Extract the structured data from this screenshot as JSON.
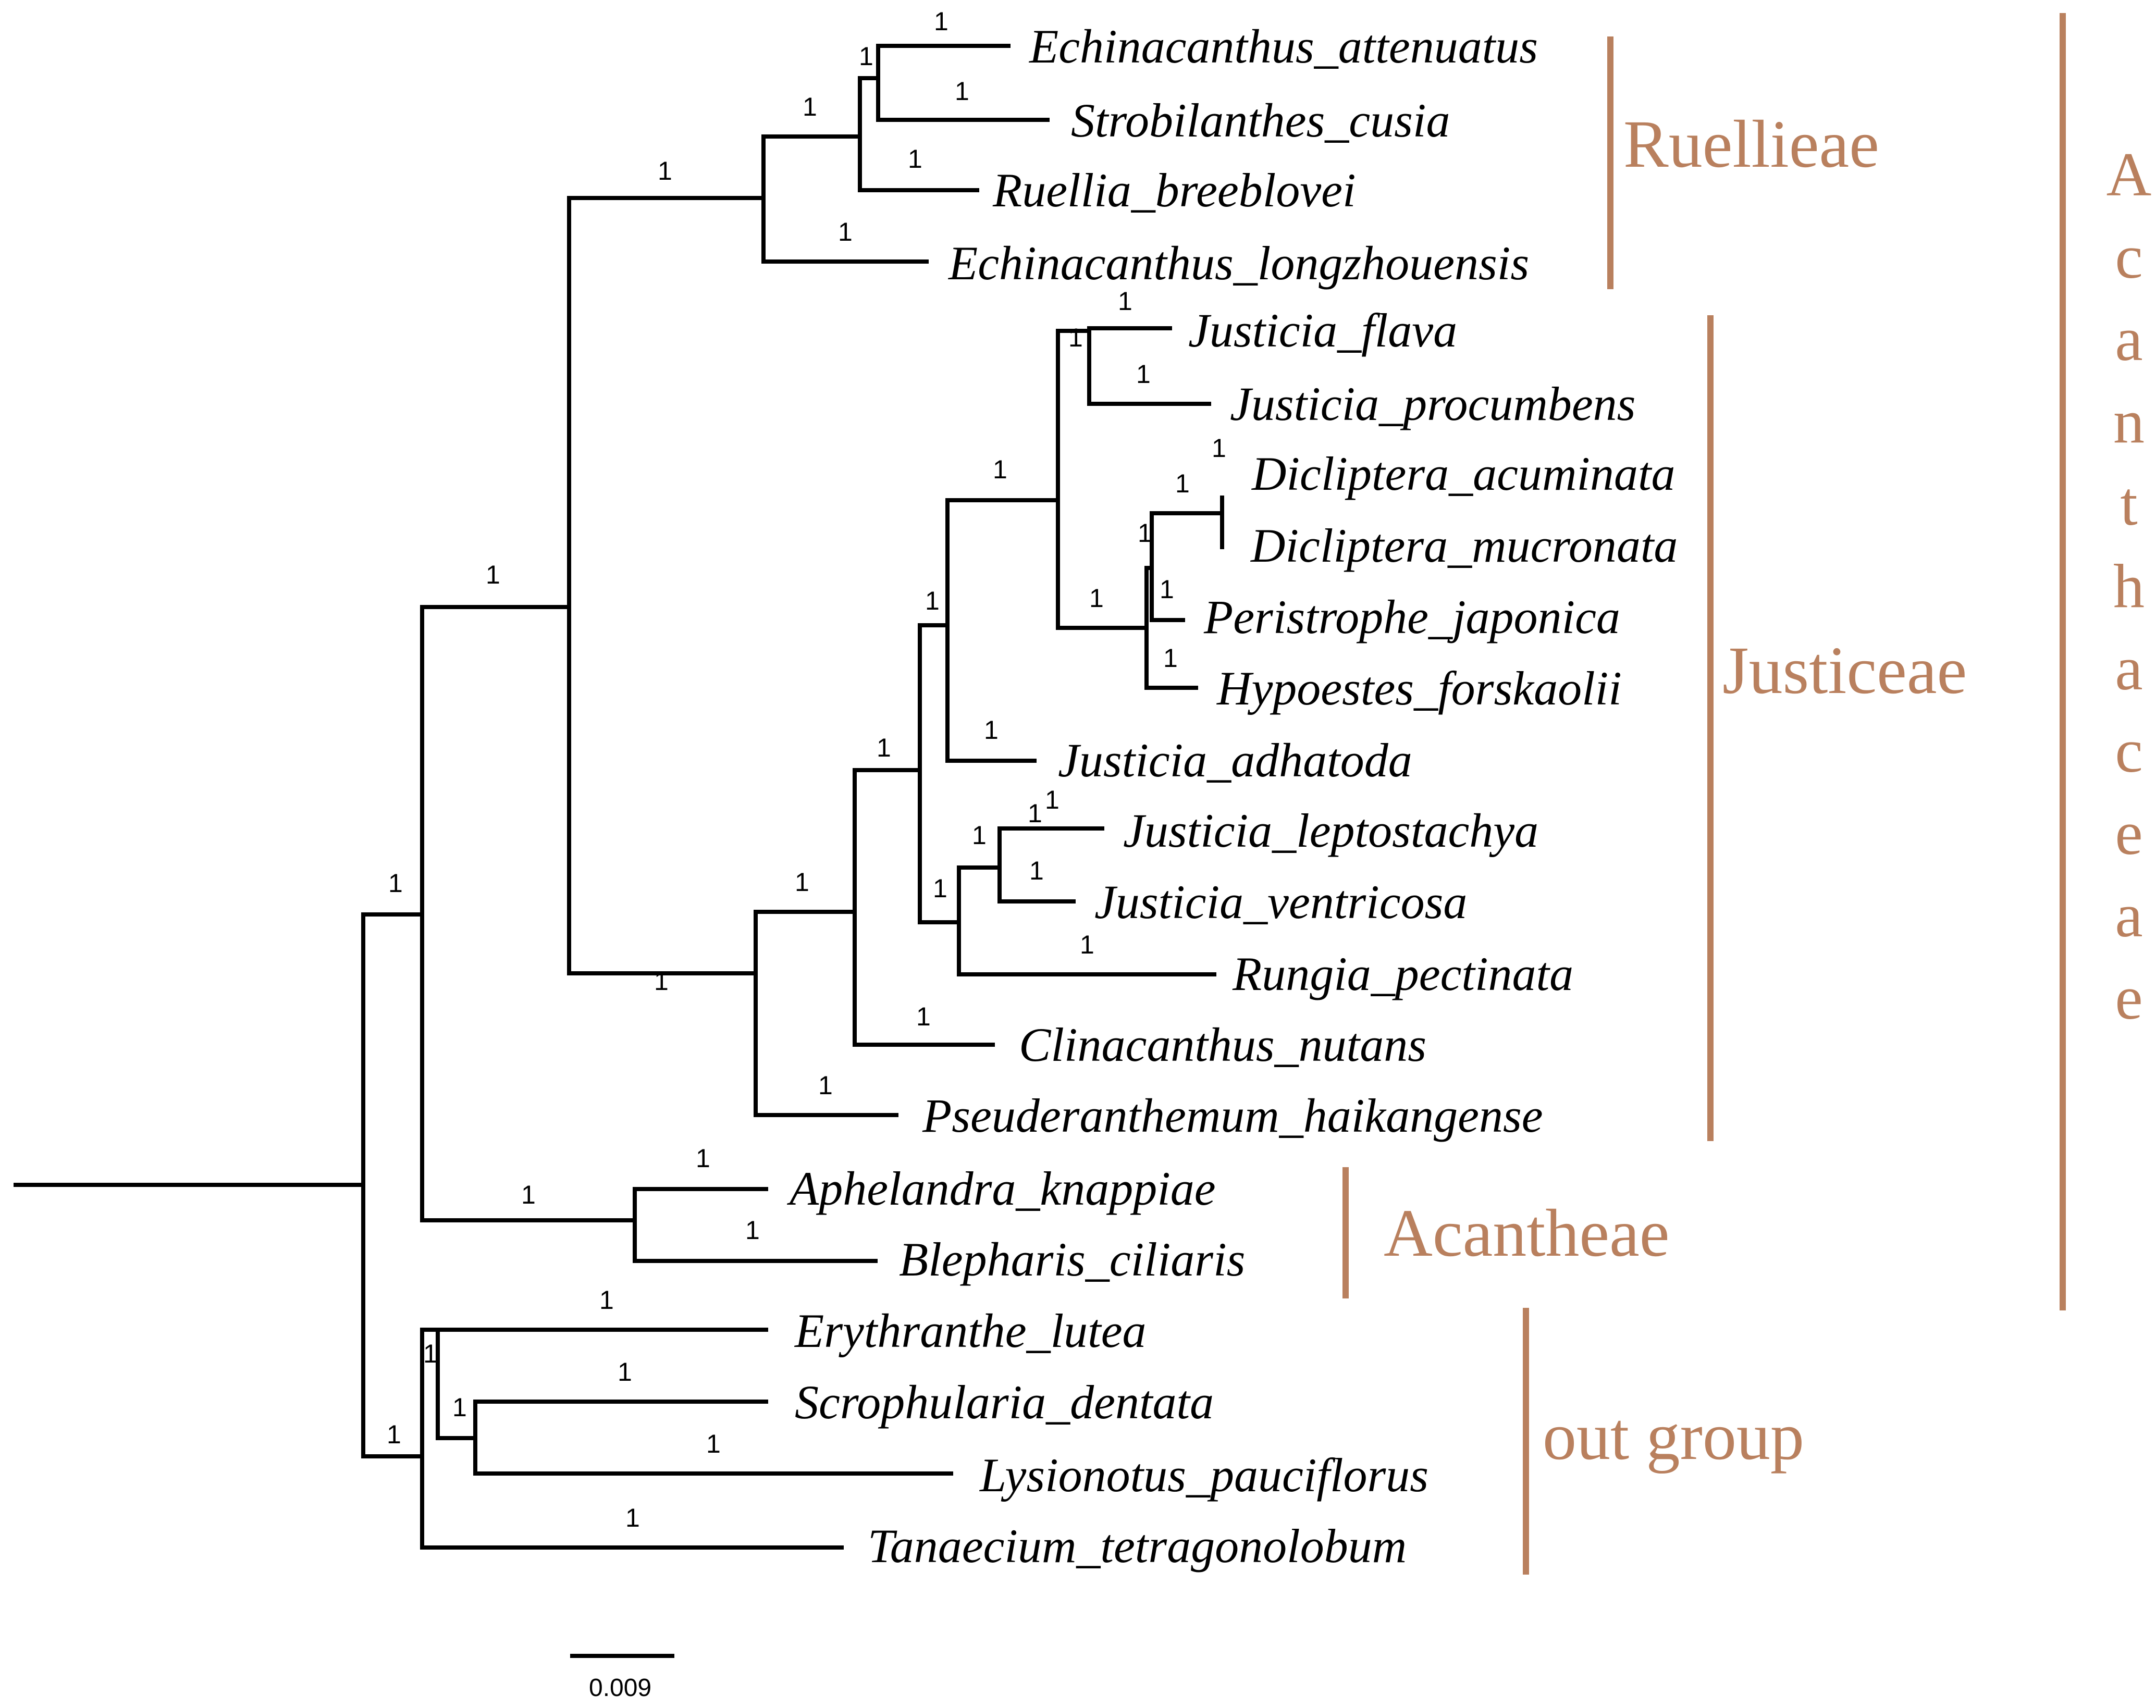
{
  "tree": {
    "taxa": [
      "Echinacanthus_attenuatus",
      "Strobilanthes_cusia",
      "Ruellia_breeblovei",
      "Echinacanthus_longzhouensis",
      "Justicia_flava",
      "Justicia_procumbens",
      "Dicliptera_acuminata",
      "Dicliptera_mucronata",
      "Peristrophe_japonica",
      "Hypoestes_forskaolii",
      "Justicia_adhatoda",
      "Justicia_leptostachya",
      "Justicia_ventricosa",
      "Rungia_pectinata",
      "Clinacanthus_nutans",
      "Pseuderanthemum_haikangense",
      "Aphelandra_knappiae",
      "Blepharis_ciliaris",
      "Erythranthe_lutea",
      "Scrophularia_dentata",
      "Lysionotus_pauciflorus",
      "Tanaecium_tetragonolobum"
    ],
    "support_value": "1"
  },
  "clades": {
    "ruellieae": "Ruellieae",
    "justiceae": "Justiceae",
    "acantheae": "Acantheae",
    "outgroup": "out group",
    "family": "Acanthaceae"
  },
  "scale_bar": {
    "label": "0.009"
  },
  "colors": {
    "clade": "#b9805e",
    "branch": "#000000"
  }
}
